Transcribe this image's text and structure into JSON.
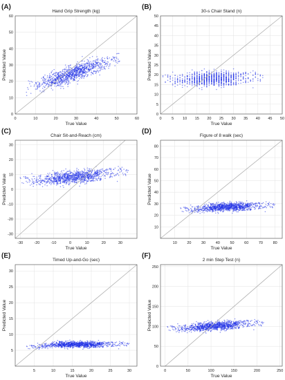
{
  "chart_data": [
    {
      "panel": "(A)",
      "type": "scatter",
      "title": "Hand Grip Strength (kg)",
      "xlabel": "True Value",
      "ylabel": "Predicted Value",
      "xlim": [
        0,
        60
      ],
      "ylim": [
        0,
        60
      ],
      "xticks": [
        0,
        10,
        20,
        30,
        40,
        50,
        60
      ],
      "yticks": [
        0,
        10,
        20,
        30,
        40,
        50,
        60
      ],
      "identity_line": true,
      "grid": true,
      "point_cloud": {
        "x_range": [
          5,
          52
        ],
        "y_range": [
          10,
          37
        ],
        "trend": [
          [
            5,
            16
          ],
          [
            20,
            21
          ],
          [
            40,
            30
          ],
          [
            50,
            33
          ]
        ],
        "spread": 4,
        "n": 1000
      }
    },
    {
      "panel": "(B)",
      "type": "scatter",
      "title": "30-s Chair Stand (n)",
      "xlabel": "True Value",
      "ylabel": "Predicted Value",
      "xlim": [
        0,
        50
      ],
      "ylim": [
        0,
        50
      ],
      "xticks": [
        0,
        5,
        10,
        15,
        20,
        25,
        30,
        35,
        40,
        45,
        50
      ],
      "yticks": [
        0,
        5,
        10,
        15,
        20,
        25,
        30,
        35,
        40,
        45,
        50
      ],
      "identity_line": true,
      "grid": true,
      "point_cloud": {
        "x_range": [
          1,
          42
        ],
        "y_range": [
          9,
          25
        ],
        "trend": [
          [
            1,
            17
          ],
          [
            40,
            19
          ]
        ],
        "spread": 3,
        "n": 1000,
        "discrete_x": true
      }
    },
    {
      "panel": "(C)",
      "type": "scatter",
      "title": "Chair Sit-and-Reach (cm)",
      "xlabel": "True Value",
      "ylabel": "Predicted Value",
      "xlim": [
        -33,
        40
      ],
      "ylim": [
        -33,
        33
      ],
      "xticks": [
        -30,
        -20,
        -10,
        0,
        10,
        20,
        30
      ],
      "yticks": [
        -30,
        -20,
        -10,
        0,
        10,
        20,
        30
      ],
      "identity_line": true,
      "grid": true,
      "point_cloud": {
        "x_range": [
          -30,
          35
        ],
        "y_range": [
          -6,
          18
        ],
        "trend": [
          [
            -20,
            6
          ],
          [
            0,
            8
          ],
          [
            30,
            12
          ]
        ],
        "spread": 3.5,
        "n": 1000
      }
    },
    {
      "panel": "(D)",
      "type": "scatter",
      "title": "Figure of 8 walk (sec)",
      "xlabel": "True Value",
      "ylabel": "Predicted Value",
      "xlim": [
        0,
        85
      ],
      "ylim": [
        0,
        85
      ],
      "xticks": [
        10,
        20,
        30,
        40,
        50,
        60,
        70,
        80
      ],
      "yticks": [
        10,
        20,
        30,
        40,
        50,
        60,
        70,
        80
      ],
      "identity_line": true,
      "grid": true,
      "point_cloud": {
        "x_range": [
          14,
          80
        ],
        "y_range": [
          18,
          36
        ],
        "trend": [
          [
            15,
            24
          ],
          [
            40,
            27
          ],
          [
            80,
            29
          ]
        ],
        "spread": 3,
        "n": 1000
      }
    },
    {
      "panel": "(E)",
      "type": "scatter",
      "title": "Timed Up-and-Go (sec)",
      "xlabel": "True Value",
      "ylabel": "Predicted Value",
      "xlim": [
        0,
        32
      ],
      "ylim": [
        0,
        32
      ],
      "xticks": [
        5,
        10,
        15,
        20,
        25,
        30
      ],
      "yticks": [
        5,
        10,
        15,
        20,
        25,
        30
      ],
      "identity_line": true,
      "grid": true,
      "point_cloud": {
        "x_range": [
          3,
          30
        ],
        "y_range": [
          4.5,
          9
        ],
        "trend": [
          [
            4,
            5.8
          ],
          [
            10,
            6.8
          ],
          [
            30,
            7
          ]
        ],
        "spread": 0.8,
        "n": 1000
      }
    },
    {
      "panel": "(F)",
      "type": "scatter",
      "title": "2 min Step Test (n)",
      "xlabel": "True Value",
      "ylabel": "Predicted Value",
      "xlim": [
        -10,
        255
      ],
      "ylim": [
        0,
        255
      ],
      "xticks": [
        0,
        50,
        100,
        150,
        200,
        250
      ],
      "yticks": [
        0,
        50,
        100,
        150,
        200,
        250
      ],
      "identity_line": true,
      "grid": true,
      "point_cloud": {
        "x_range": [
          5,
          215
        ],
        "y_range": [
          70,
          130
        ],
        "trend": [
          [
            5,
            92
          ],
          [
            100,
            100
          ],
          [
            180,
            108
          ]
        ],
        "spread": 9,
        "n": 1000
      }
    }
  ],
  "colors": {
    "points": "#1f2fe6",
    "identity_line": "#b0b0b0",
    "grid": "#e2e2e2",
    "axis": "#444444",
    "text": "#222222"
  }
}
